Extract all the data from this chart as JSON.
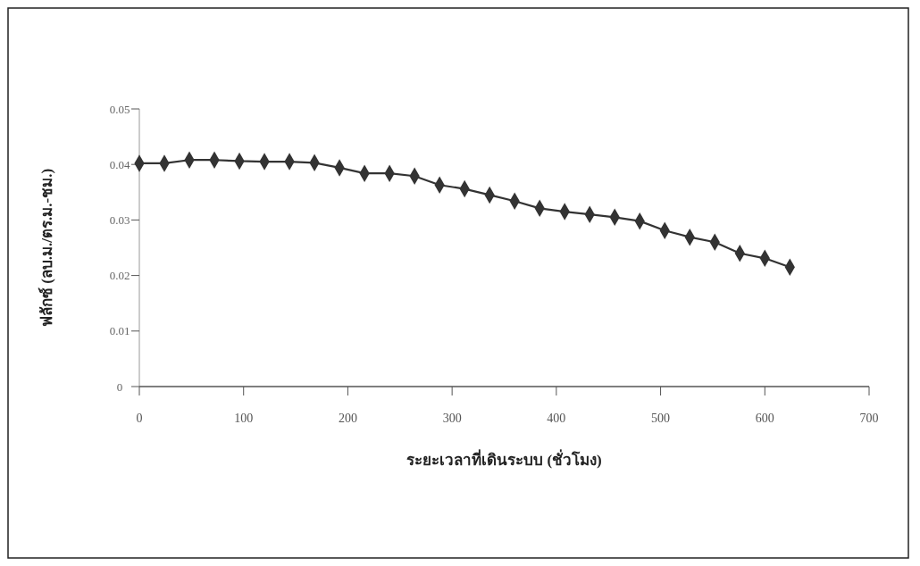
{
  "chart_data": {
    "type": "line",
    "xlabel": "ระยะเวลาที่เดินระบบ (ชั่วโมง)",
    "ylabel": "ฟลักซ์ (ลบ.ม./ตร.ม.-ชม.)",
    "x": [
      0,
      24,
      48,
      72,
      96,
      120,
      144,
      168,
      192,
      216,
      240,
      264,
      288,
      312,
      336,
      360,
      384,
      408,
      432,
      456,
      480,
      504,
      528,
      552,
      576,
      600,
      624
    ],
    "series": [
      {
        "color": "#333333",
        "values": [
          0.0402,
          0.0402,
          0.0408,
          0.0408,
          0.0406,
          0.0405,
          0.0405,
          0.0403,
          0.0394,
          0.0384,
          0.0384,
          0.0379,
          0.0363,
          0.0356,
          0.0345,
          0.0334,
          0.0321,
          0.0315,
          0.031,
          0.0305,
          0.0298,
          0.0281,
          0.0269,
          0.026,
          0.024,
          0.0231,
          0.0215
        ]
      }
    ],
    "xlim": [
      0,
      700
    ],
    "xticks": [
      0,
      100,
      200,
      300,
      400,
      500,
      600,
      700
    ],
    "ylim": [
      0,
      0.05
    ],
    "yticks": [
      0,
      0.01,
      0.02,
      0.03,
      0.04,
      0.05
    ],
    "grid": false,
    "marker": "diamond",
    "line_style": "solid"
  }
}
